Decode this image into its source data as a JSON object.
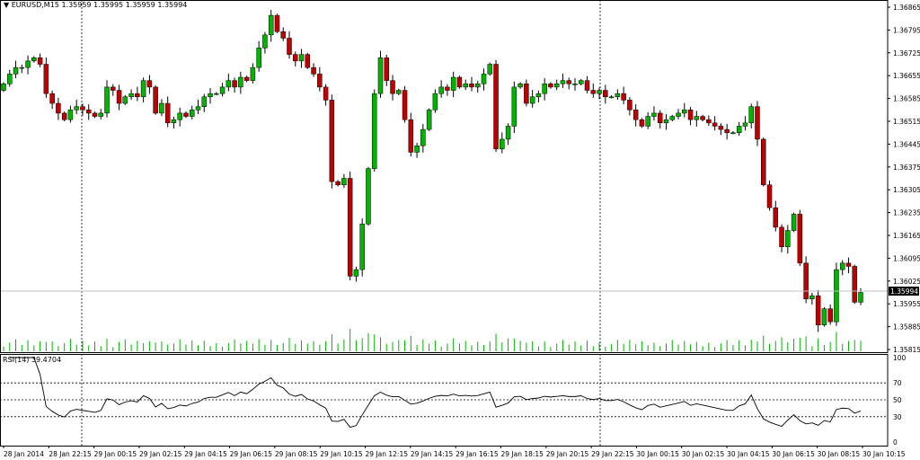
{
  "header": {
    "symbol": "EURUSD,M15",
    "ohlc": "1.35959 1.35995 1.35959 1.35994"
  },
  "rsi": {
    "label": "RSI(14) 39.4704"
  },
  "colors": {
    "bull": "#00b400",
    "bear": "#c00000",
    "volume": "#00b400",
    "grid": "#000000",
    "rsi_line": "#000000"
  },
  "chart_data": {
    "type": "candlestick",
    "price_axis": {
      "ticks": [
        "1.36865",
        "1.36795",
        "1.36725",
        "1.36655",
        "1.36585",
        "1.36515",
        "1.36445",
        "1.36375",
        "1.36305",
        "1.36235",
        "1.36165",
        "1.36095",
        "1.36025",
        "1.35955",
        "1.35885",
        "1.35815"
      ],
      "range": [
        1.35815,
        1.36865
      ],
      "current_price": "1.35994"
    },
    "rsi_axis": {
      "ticks": [
        "100",
        "70",
        "50",
        "30",
        "0"
      ],
      "levels": [
        70,
        50,
        30
      ]
    },
    "time_labels": [
      "28 Jan 2014",
      "28 Jan 22:15",
      "29 Jan 00:15",
      "29 Jan 02:15",
      "29 Jan 04:15",
      "29 Jan 06:15",
      "29 Jan 08:15",
      "29 Jan 10:15",
      "29 Jan 12:15",
      "29 Jan 14:15",
      "29 Jan 16:15",
      "29 Jan 18:15",
      "29 Jan 20:15",
      "29 Jan 22:15",
      "30 Jan 00:15",
      "30 Jan 02:15",
      "30 Jan 04:15",
      "30 Jan 06:15",
      "30 Jan 08:15",
      "30 Jan 10:15"
    ],
    "closes": [
      1.3663,
      1.3666,
      1.3668,
      1.3668,
      1.367,
      1.3671,
      1.3669,
      1.366,
      1.3657,
      1.3654,
      1.3652,
      1.3655,
      1.3656,
      1.3655,
      1.3654,
      1.3653,
      1.3654,
      1.3662,
      1.3661,
      1.3657,
      1.3659,
      1.366,
      1.3659,
      1.3664,
      1.3662,
      1.3654,
      1.3657,
      1.3651,
      1.3652,
      1.3654,
      1.3653,
      1.3655,
      1.3656,
      1.3659,
      1.366,
      1.366,
      1.3662,
      1.3664,
      1.3662,
      1.3665,
      1.3664,
      1.3668,
      1.3674,
      1.3678,
      1.3684,
      1.3679,
      1.3677,
      1.3672,
      1.367,
      1.3672,
      1.3668,
      1.3666,
      1.3662,
      1.3658,
      1.3633,
      1.3632,
      1.3634,
      1.3604,
      1.3606,
      1.362,
      1.3637,
      1.366,
      1.3671,
      1.3664,
      1.366,
      1.3661,
      1.3652,
      1.3642,
      1.3644,
      1.3649,
      1.3655,
      1.366,
      1.3662,
      1.3661,
      1.3665,
      1.3662,
      1.3663,
      1.3662,
      1.3663,
      1.3666,
      1.3669,
      1.3643,
      1.3646,
      1.365,
      1.3662,
      1.3663,
      1.3657,
      1.3659,
      1.366,
      1.3663,
      1.3662,
      1.3663,
      1.3664,
      1.3663,
      1.3663,
      1.3664,
      1.3661,
      1.366,
      1.3661,
      1.3659,
      1.3659,
      1.366,
      1.3658,
      1.3655,
      1.3652,
      1.365,
      1.3653,
      1.3654,
      1.3651,
      1.3652,
      1.3653,
      1.3654,
      1.3655,
      1.3652,
      1.3653,
      1.3652,
      1.3651,
      1.365,
      1.3649,
      1.3648,
      1.3648,
      1.365,
      1.3651,
      1.3656,
      1.3646,
      1.3632,
      1.3625,
      1.3619,
      1.3613,
      1.3618,
      1.3623,
      1.3608,
      1.3597,
      1.3598,
      1.3589,
      1.3594,
      1.359,
      1.3606,
      1.3608,
      1.3607,
      1.3596,
      1.3599
    ]
  }
}
